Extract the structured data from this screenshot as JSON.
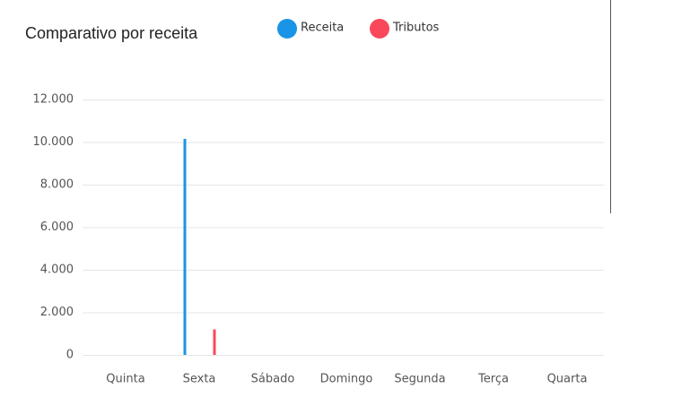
{
  "chart_data": {
    "type": "bar",
    "title": "Comparativo por receita",
    "categories": [
      "Quinta",
      "Sexta",
      "Sábado",
      "Domingo",
      "Segunda",
      "Terça",
      "Quarta"
    ],
    "series": [
      {
        "name": "Receita",
        "color": "#1a94e6",
        "values": [
          0,
          10150,
          0,
          0,
          0,
          0,
          0
        ]
      },
      {
        "name": "Tributos",
        "color": "#f9485a",
        "values": [
          0,
          1200,
          0,
          0,
          0,
          0,
          0
        ]
      }
    ],
    "ylim": [
      0,
      12000
    ],
    "yticks": [
      0,
      {
        "value": 2000,
        "label": "2.000"
      },
      {
        "value": 4000,
        "label": "4.000"
      },
      {
        "value": 6000,
        "label": "6.000"
      },
      {
        "value": 8000,
        "label": "8.000"
      },
      {
        "value": 10000,
        "label": "10.000"
      },
      {
        "value": 12000,
        "label": "12.000"
      }
    ],
    "grid": true
  }
}
